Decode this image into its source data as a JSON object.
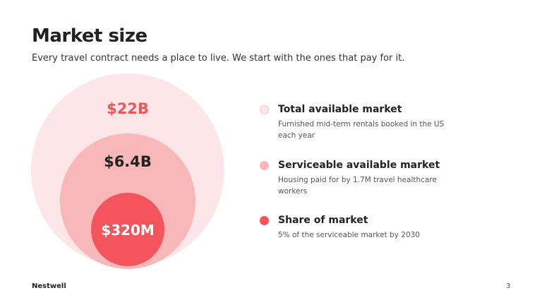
{
  "slide": {
    "title": "Market size",
    "subtitle": "Every travel contract needs a place to live. We start with the ones that pay for it."
  },
  "circles": [
    {
      "label": "$22B",
      "fill": "#fde6e7",
      "label_color": "#f0555a"
    },
    {
      "label": "$6.4B",
      "fill": "#f8b7b9",
      "label_color": "#222222"
    },
    {
      "label": "$320M",
      "fill": "#f4545c",
      "label_color": "#ffffff"
    }
  ],
  "legend": [
    {
      "title": "Total available market",
      "description": "Furnished mid-term rentals booked in the US each year",
      "color": "#fde6e7"
    },
    {
      "title": "Serviceable available market",
      "description": "Housing paid for by 1.7M travel healthcare workers",
      "color": "#f8b7b9"
    },
    {
      "title": "Share of market",
      "description": "5% of the serviceable market by 2030",
      "color": "#f4545c"
    }
  ],
  "footer": {
    "brand": "Nestwell",
    "page_number": "3"
  }
}
